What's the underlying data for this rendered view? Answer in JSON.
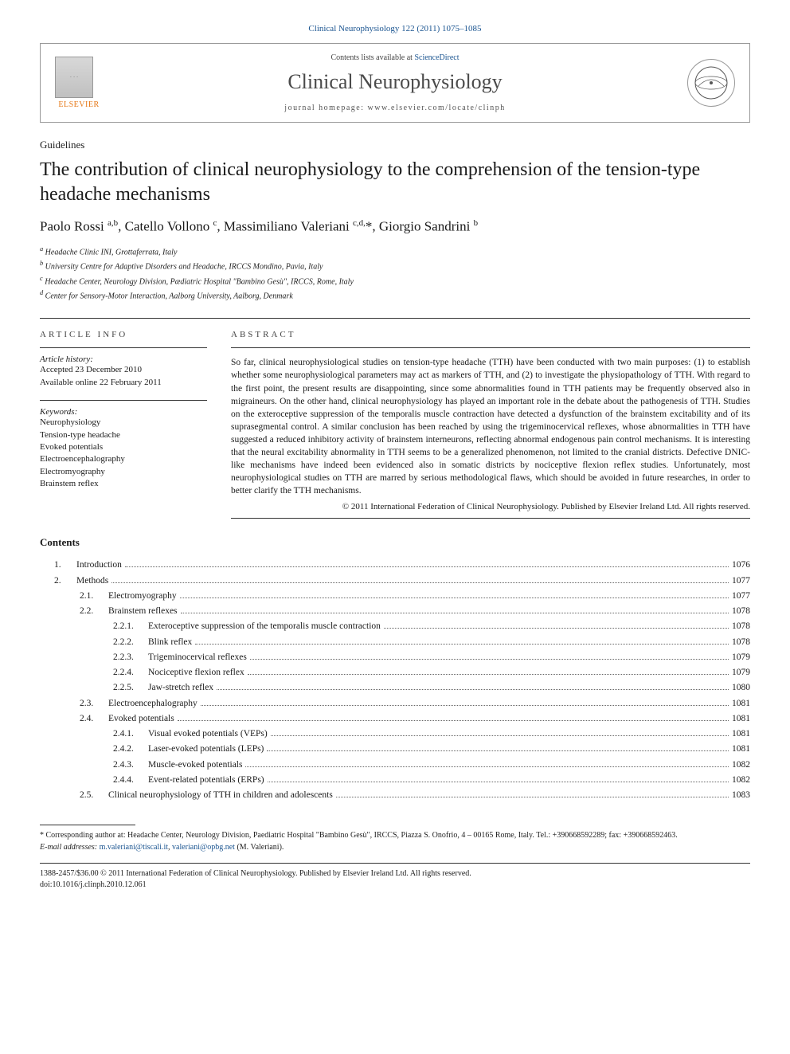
{
  "citation": "Clinical Neurophysiology 122 (2011) 1075–1085",
  "header": {
    "contents_prefix": "Contents lists available at ",
    "contents_link": "ScienceDirect",
    "journal": "Clinical Neurophysiology",
    "homepage_prefix": "journal homepage: ",
    "homepage_url": "www.elsevier.com/locate/clinph",
    "elsevier_label": "ELSEVIER"
  },
  "article_type": "Guidelines",
  "title": "The contribution of clinical neurophysiology to the comprehension of the tension-type headache mechanisms",
  "authors_html": "Paolo Rossi <sup>a,b</sup>, Catello Vollono <sup>c</sup>, Massimiliano Valeriani <sup>c,d,</sup>*, Giorgio Sandrini <sup>b</sup>",
  "affiliations": [
    "a Headache Clinic INI, Grottaferrata, Italy",
    "b University Centre for Adaptive Disorders and Headache, IRCCS Mondino, Pavia, Italy",
    "c Headache Center, Neurology Division, Pædiatric Hospital \"Bambino Gesù\", IRCCS, Rome, Italy",
    "d Center for Sensory-Motor Interaction, Aalborg University, Aalborg, Denmark"
  ],
  "info": {
    "heading": "ARTICLE INFO",
    "history_label": "Article history:",
    "accepted": "Accepted 23 December 2010",
    "online": "Available online 22 February 2011",
    "keywords_label": "Keywords:",
    "keywords": [
      "Neurophysiology",
      "Tension-type headache",
      "Evoked potentials",
      "Electroencephalography",
      "Electromyography",
      "Brainstem reflex"
    ]
  },
  "abstract": {
    "heading": "ABSTRACT",
    "text": "So far, clinical neurophysiological studies on tension-type headache (TTH) have been conducted with two main purposes: (1) to establish whether some neurophysiological parameters may act as markers of TTH, and (2) to investigate the physiopathology of TTH. With regard to the first point, the present results are disappointing, since some abnormalities found in TTH patients may be frequently observed also in migraineurs. On the other hand, clinical neurophysiology has played an important role in the debate about the pathogenesis of TTH. Studies on the exteroceptive suppression of the temporalis muscle contraction have detected a dysfunction of the brainstem excitability and of its suprasegmental control. A similar conclusion has been reached by using the trigeminocervical reflexes, whose abnormalities in TTH have suggested a reduced inhibitory activity of brainstem interneurons, reflecting abnormal endogenous pain control mechanisms. It is interesting that the neural excitability abnormality in TTH seems to be a generalized phenomenon, not limited to the cranial districts. Defective DNIC-like mechanisms have indeed been evidenced also in somatic districts by nociceptive flexion reflex studies. Unfortunately, most neurophysiological studies on TTH are marred by serious methodological flaws, which should be avoided in future researches, in order to better clarify the TTH mechanisms.",
    "copyright": "© 2011 International Federation of Clinical Neurophysiology. Published by Elsevier Ireland Ltd. All rights reserved."
  },
  "contents": {
    "heading": "Contents",
    "items": [
      {
        "level": 0,
        "num": "1.",
        "label": "Introduction",
        "page": "1076"
      },
      {
        "level": 0,
        "num": "2.",
        "label": "Methods",
        "page": "1077"
      },
      {
        "level": 1,
        "num": "2.1.",
        "label": "Electromyography",
        "page": "1077"
      },
      {
        "level": 1,
        "num": "2.2.",
        "label": "Brainstem reflexes",
        "page": "1078"
      },
      {
        "level": 2,
        "num": "2.2.1.",
        "label": "Exteroceptive suppression of the temporalis muscle contraction",
        "page": "1078"
      },
      {
        "level": 2,
        "num": "2.2.2.",
        "label": "Blink reflex",
        "page": "1078"
      },
      {
        "level": 2,
        "num": "2.2.3.",
        "label": "Trigeminocervical reflexes",
        "page": "1079"
      },
      {
        "level": 2,
        "num": "2.2.4.",
        "label": "Nociceptive flexion reflex",
        "page": "1079"
      },
      {
        "level": 2,
        "num": "2.2.5.",
        "label": "Jaw-stretch reflex",
        "page": "1080"
      },
      {
        "level": 1,
        "num": "2.3.",
        "label": "Electroencephalography",
        "page": "1081"
      },
      {
        "level": 1,
        "num": "2.4.",
        "label": "Evoked potentials",
        "page": "1081"
      },
      {
        "level": 2,
        "num": "2.4.1.",
        "label": "Visual evoked potentials (VEPs)",
        "page": "1081"
      },
      {
        "level": 2,
        "num": "2.4.2.",
        "label": "Laser-evoked potentials (LEPs)",
        "page": "1081"
      },
      {
        "level": 2,
        "num": "2.4.3.",
        "label": "Muscle-evoked potentials",
        "page": "1082"
      },
      {
        "level": 2,
        "num": "2.4.4.",
        "label": "Event-related potentials (ERPs)",
        "page": "1082"
      },
      {
        "level": 1,
        "num": "2.5.",
        "label": "Clinical neurophysiology of TTH in children and adolescents",
        "page": "1083"
      }
    ]
  },
  "footnotes": {
    "corr": "* Corresponding author at: Headache Center, Neurology Division, Paediatric Hospital \"Bambino Gesù\", IRCCS, Piazza S. Onofrio, 4 – 00165 Rome, Italy. Tel.: +390668592289; fax: +390668592463.",
    "email_label": "E-mail addresses:",
    "email1": "m.valeriani@tiscali.it",
    "email2": "valeriani@opbg.net",
    "email_tail": " (M. Valeriani)."
  },
  "bottom": {
    "issn": "1388-2457/$36.00 © 2011 International Federation of Clinical Neurophysiology. Published by Elsevier Ireland Ltd. All rights reserved.",
    "doi": "doi:10.1016/j.clinph.2010.12.061"
  },
  "colors": {
    "link": "#1a5490",
    "text": "#1a1a1a",
    "elsevier_orange": "#e67817",
    "border": "#333333"
  }
}
